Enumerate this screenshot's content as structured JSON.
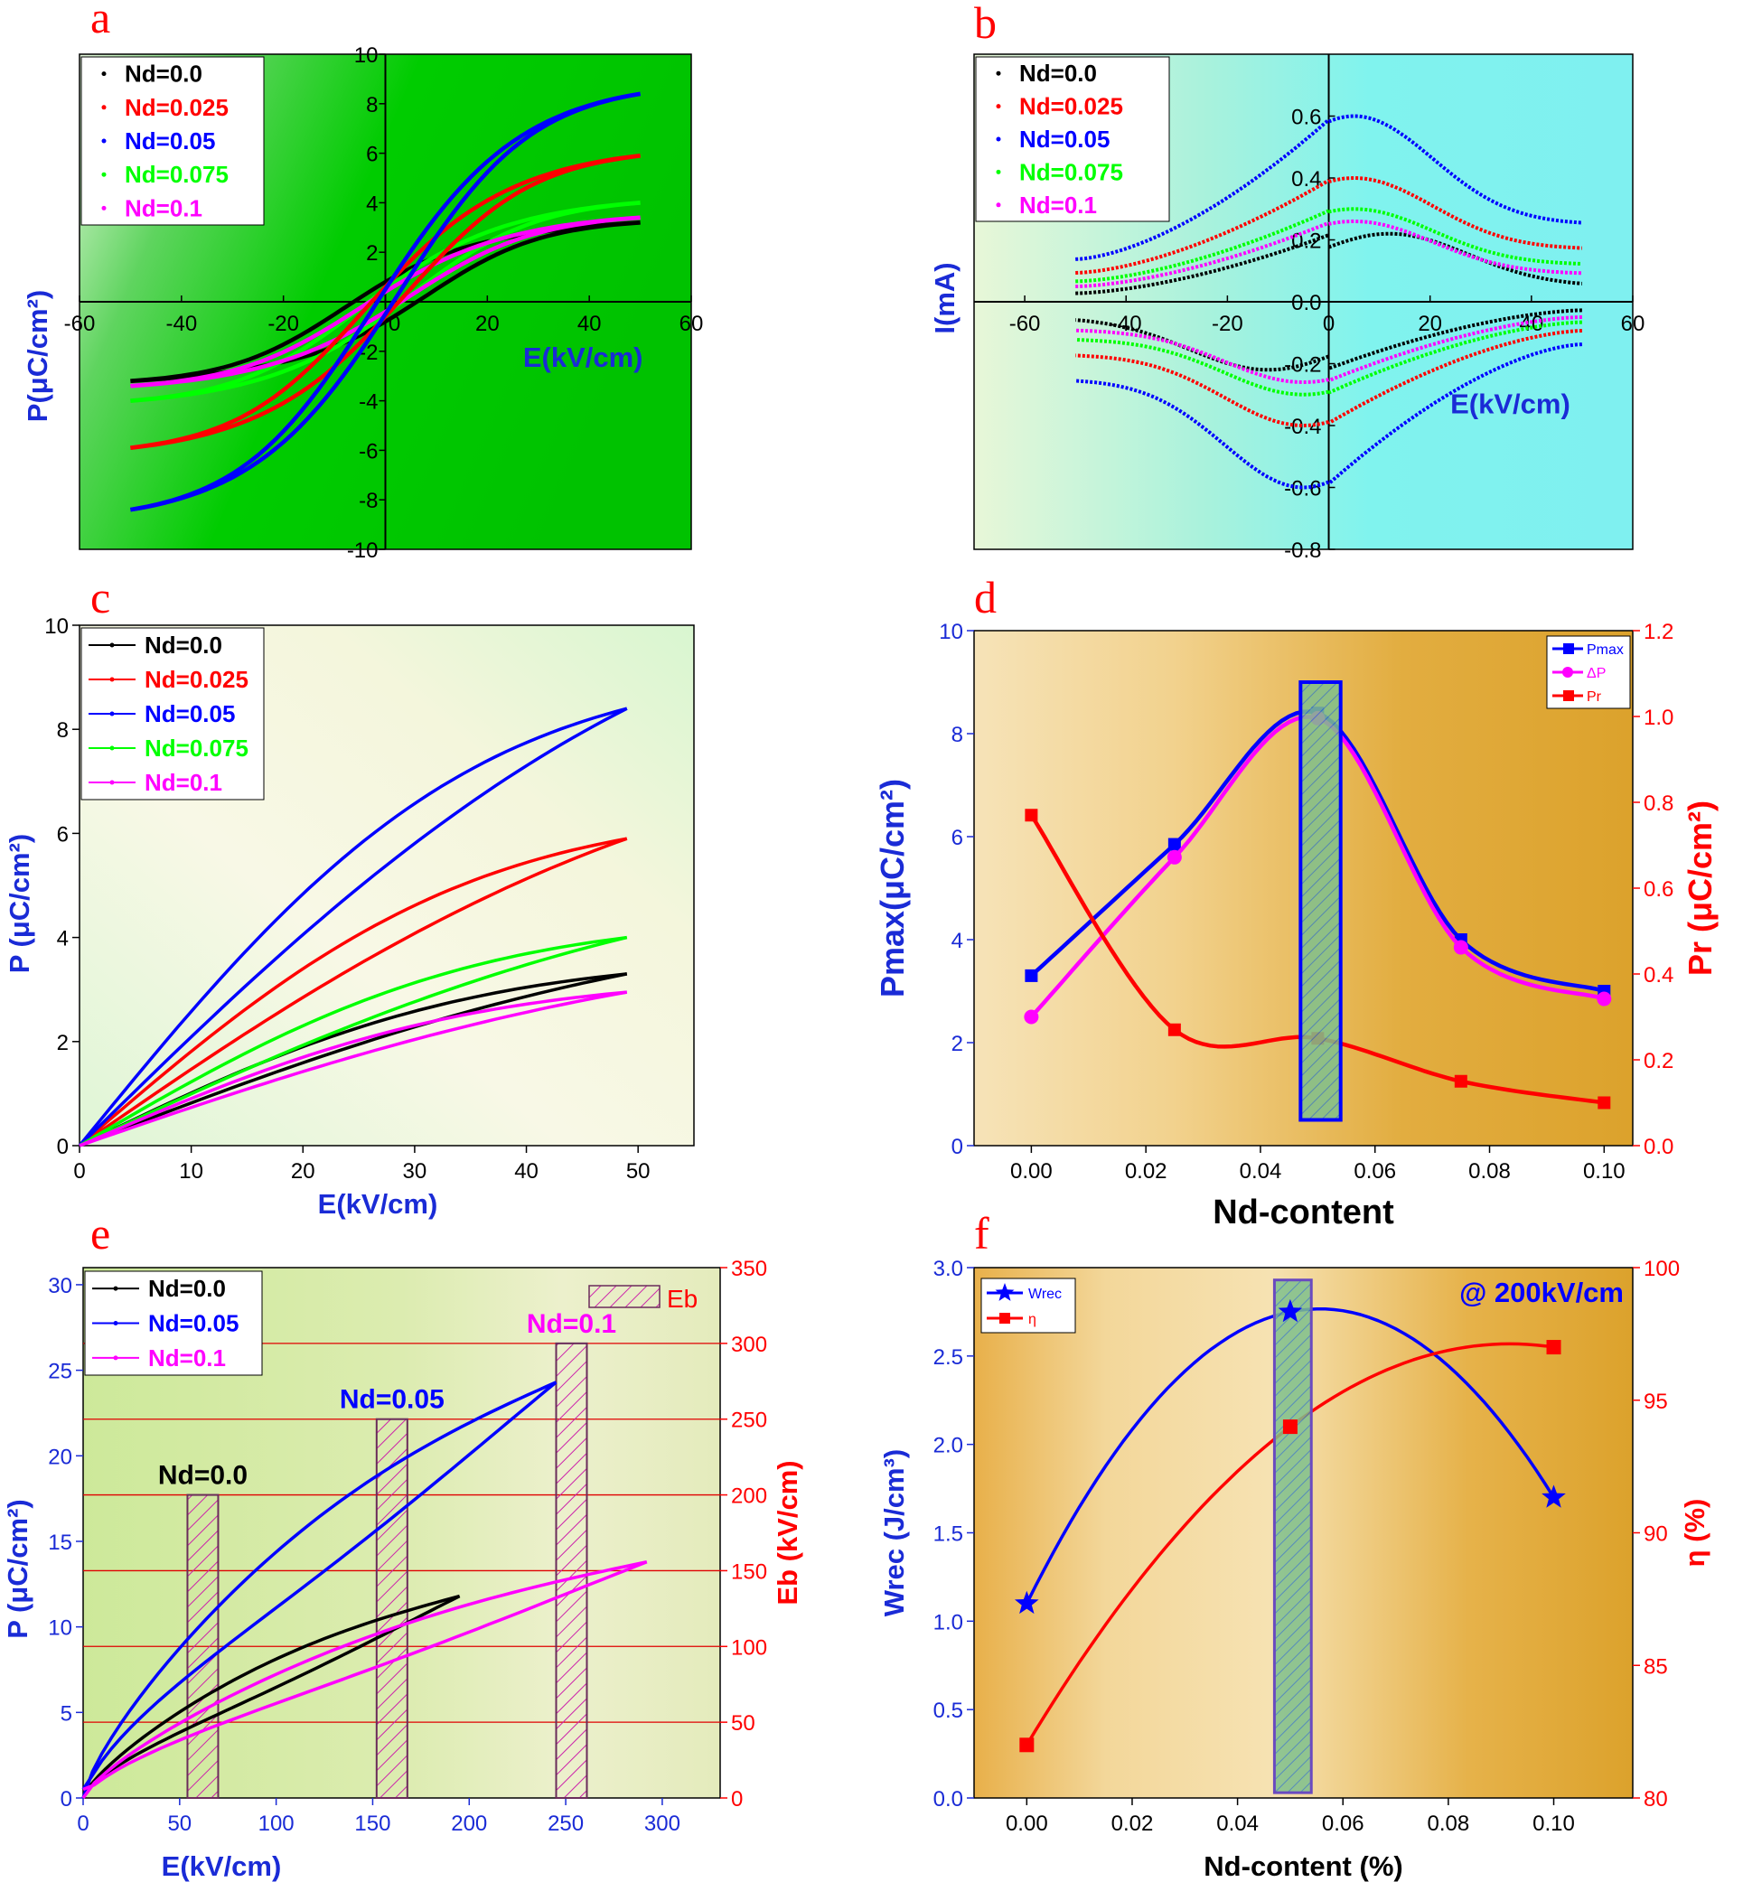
{
  "chart_data": [
    {
      "id": "a",
      "panel_label": "a",
      "type": "line",
      "xlabel": "E(kV/cm)",
      "ylabel": "P(μC/cm²)",
      "xlim": [
        -60,
        60
      ],
      "ylim": [
        -10,
        10
      ],
      "xticks": [
        "-60",
        "-40",
        "-20",
        "0",
        "20",
        "40",
        "60"
      ],
      "yticks": [
        "-10",
        "-8",
        "-6",
        "-4",
        "-2",
        "0",
        "2",
        "4",
        "6",
        "8",
        "10"
      ],
      "legend": "top-left",
      "series": [
        {
          "name": "Nd=0.0",
          "color": "#000000",
          "max_P": 3.2,
          "max_E": 50,
          "hyst": 0.8
        },
        {
          "name": "Nd=0.025",
          "color": "#ff0000",
          "max_P": 5.9,
          "max_E": 50,
          "hyst": 0.6
        },
        {
          "name": "Nd=0.05",
          "color": "#0000ff",
          "max_P": 8.4,
          "max_E": 50,
          "hyst": 0.5
        },
        {
          "name": "Nd=0.075",
          "color": "#00ff00",
          "max_P": 4.0,
          "max_E": 50,
          "hyst": 0.5
        },
        {
          "name": "Nd=0.1",
          "color": "#ff00ff",
          "max_P": 3.4,
          "max_E": 50,
          "hyst": 0.4
        }
      ]
    },
    {
      "id": "b",
      "panel_label": "b",
      "type": "line",
      "xlabel": "E(kV/cm)",
      "ylabel": "I(mA)",
      "xlim": [
        -70,
        60
      ],
      "ylim": [
        -0.8,
        0.8
      ],
      "xticks": [
        "-60",
        "-40",
        "-20",
        "0",
        "20",
        "40",
        "60"
      ],
      "yticks": [
        "0.6",
        "0.4",
        "0.2",
        "0.0",
        "-0.2",
        "-0.4",
        "-0.6",
        "-0.8"
      ],
      "legend": "top-left",
      "series": [
        {
          "name": "Nd=0.0",
          "color": "#000000",
          "peak": 0.22,
          "edge": 0.05,
          "e_peak": 12
        },
        {
          "name": "Nd=0.025",
          "color": "#ff0000",
          "peak": 0.4,
          "edge": 0.17,
          "e_peak": 5
        },
        {
          "name": "Nd=0.05",
          "color": "#0000ff",
          "peak": 0.6,
          "edge": 0.25,
          "e_peak": 5
        },
        {
          "name": "Nd=0.075",
          "color": "#00ff00",
          "peak": 0.3,
          "edge": 0.12,
          "e_peak": 5
        },
        {
          "name": "Nd=0.1",
          "color": "#ff00ff",
          "peak": 0.26,
          "edge": 0.09,
          "e_peak": 5
        }
      ]
    },
    {
      "id": "c",
      "panel_label": "c",
      "type": "line",
      "xlabel": "E(kV/cm)",
      "ylabel": "P (μC/cm²)",
      "xlim": [
        0,
        55
      ],
      "ylim": [
        0,
        10
      ],
      "xticks": [
        "0",
        "10",
        "20",
        "30",
        "40",
        "50"
      ],
      "yticks": [
        "0",
        "2",
        "4",
        "6",
        "8",
        "10"
      ],
      "legend": "top-left",
      "series": [
        {
          "name": "Nd=0.0",
          "color": "#000000",
          "max_P": 3.3,
          "max_E": 49
        },
        {
          "name": "Nd=0.025",
          "color": "#ff0000",
          "max_P": 5.9,
          "max_E": 49
        },
        {
          "name": "Nd=0.05",
          "color": "#0000ff",
          "max_P": 8.4,
          "max_E": 49
        },
        {
          "name": "Nd=0.075",
          "color": "#00ff00",
          "max_P": 4.0,
          "max_E": 49
        },
        {
          "name": "Nd=0.1",
          "color": "#ff00ff",
          "max_P": 2.95,
          "max_E": 49
        }
      ]
    },
    {
      "id": "d",
      "panel_label": "d",
      "type": "line",
      "xlabel": "Nd-content",
      "ylabel": "Pmax(μC/cm²)",
      "y2label": "Pr (μC/cm²)",
      "xlim": [
        -0.01,
        0.105
      ],
      "ylim": [
        0,
        10
      ],
      "y2lim": [
        0,
        1.2
      ],
      "xticks": [
        "0.00",
        "0.02",
        "0.04",
        "0.06",
        "0.08",
        "0.10"
      ],
      "yticks": [
        "0",
        "2",
        "4",
        "6",
        "8",
        "10"
      ],
      "y2ticks": [
        "0.0",
        "0.2",
        "0.4",
        "0.6",
        "0.8",
        "1.0",
        "1.2"
      ],
      "legend": "top-right",
      "x": [
        0.0,
        0.025,
        0.05,
        0.075,
        0.1
      ],
      "series": [
        {
          "name": "Pmax",
          "color": "#0000ff",
          "axis": "left",
          "values": [
            3.3,
            5.85,
            8.4,
            4.0,
            3.0
          ]
        },
        {
          "name": "ΔP",
          "color": "#ff00ff",
          "axis": "left",
          "values": [
            2.5,
            5.6,
            8.3,
            3.85,
            2.85
          ]
        },
        {
          "name": "Pr",
          "color": "#ff0000",
          "axis": "right",
          "values": [
            0.77,
            0.27,
            0.25,
            0.15,
            0.1
          ]
        }
      ],
      "highlight": {
        "x": [
          0.047,
          0.054
        ],
        "y": [
          0.5,
          9.0
        ]
      }
    },
    {
      "id": "e",
      "panel_label": "e",
      "type": "line",
      "xlabel": "E(kV/cm)",
      "ylabel": "P (μC/cm²)",
      "y2label": "Eb (kV/cm)",
      "xlim": [
        0,
        330
      ],
      "ylim": [
        0,
        31
      ],
      "y2lim": [
        0,
        350
      ],
      "xticks": [
        "0",
        "50",
        "100",
        "150",
        "200",
        "250",
        "300"
      ],
      "yticks": [
        "0",
        "5",
        "10",
        "15",
        "20",
        "25",
        "30"
      ],
      "y2ticks": [
        "0",
        "50",
        "100",
        "150",
        "200",
        "250",
        "300",
        "350"
      ],
      "legend": "top-left",
      "series": [
        {
          "name": "Nd=0.0",
          "color": "#000000",
          "max_E": 195,
          "max_P": 11.8
        },
        {
          "name": "Nd=0.05",
          "color": "#0000ff",
          "max_E": 245,
          "max_P": 24.3
        },
        {
          "name": "Nd=0.1",
          "color": "#ff00ff",
          "max_E": 292,
          "max_P": 13.8
        }
      ],
      "bars": {
        "name": "Eb",
        "color": "#dd33aa",
        "labels": [
          "Nd=0.0",
          "Nd=0.05",
          "Nd=0.1"
        ],
        "label_colors": [
          "#000000",
          "#0000ff",
          "#ff00ff"
        ],
        "x": [
          62,
          160,
          253
        ],
        "values": [
          200,
          250,
          300
        ]
      }
    },
    {
      "id": "f",
      "panel_label": "f",
      "type": "line",
      "xlabel": "Nd-content (%)",
      "ylabel": "Wrec (J/cm³)",
      "y2label": "η (%)",
      "xlim": [
        -0.01,
        0.115
      ],
      "ylim": [
        0,
        3.0
      ],
      "y2lim": [
        80,
        100
      ],
      "xticks": [
        "0.00",
        "0.02",
        "0.04",
        "0.06",
        "0.08",
        "0.10"
      ],
      "yticks": [
        "0.0",
        "0.5",
        "1.0",
        "1.5",
        "2.0",
        "2.5",
        "3.0"
      ],
      "y2ticks": [
        "80",
        "85",
        "90",
        "95",
        "100"
      ],
      "annotation": "@ 200kV/cm",
      "legend": "top-left",
      "x": [
        0.0,
        0.05,
        0.1
      ],
      "series": [
        {
          "name": "Wrec",
          "color": "#0000ff",
          "axis": "left",
          "values": [
            1.1,
            2.75,
            1.7
          ]
        },
        {
          "name": "η",
          "color": "#ff0000",
          "axis": "right",
          "values": [
            82,
            94,
            97
          ]
        }
      ],
      "highlight": {
        "x": [
          0.047,
          0.054
        ],
        "y": [
          0.03,
          2.93
        ]
      }
    }
  ]
}
